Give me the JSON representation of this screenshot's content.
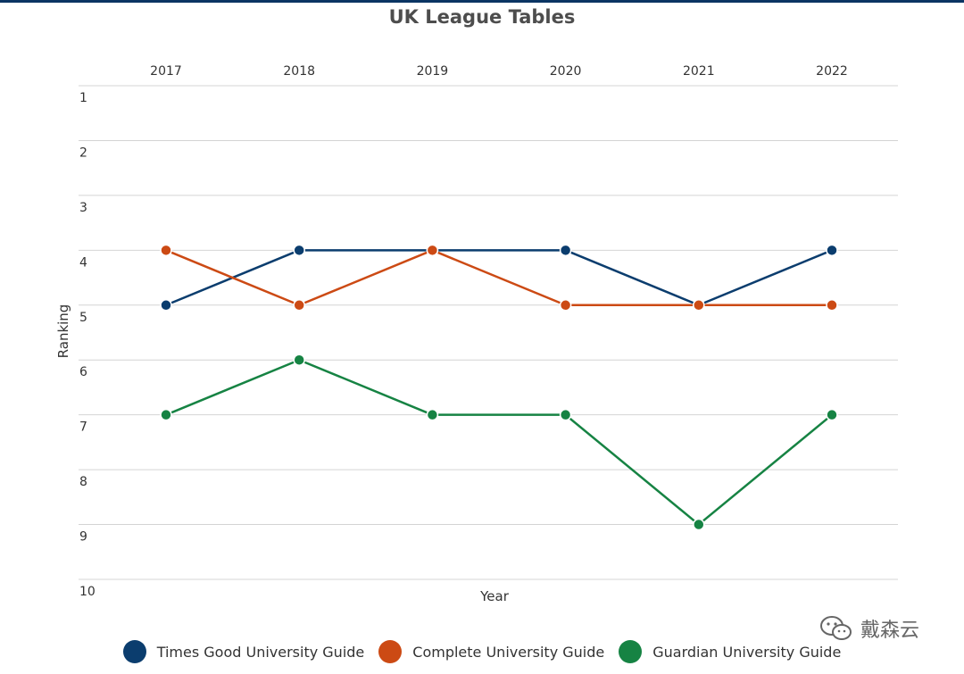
{
  "chart_data": {
    "type": "line",
    "title": "UK League Tables",
    "xlabel": "Year",
    "ylabel": "Ranking",
    "categories": [
      "2017",
      "2018",
      "2019",
      "2020",
      "2021",
      "2022"
    ],
    "y_ticks": [
      "1",
      "2",
      "3",
      "4",
      "5",
      "6",
      "7",
      "8",
      "9",
      "10"
    ],
    "ylim": [
      1,
      10
    ],
    "y_inverted": true,
    "x_axis_position": "top",
    "grid": true,
    "legend_position": "bottom",
    "series": [
      {
        "name": "Times Good University Guide",
        "color": "#0b3d6e",
        "values": [
          5,
          4,
          4,
          4,
          5,
          4
        ]
      },
      {
        "name": "Complete University Guide",
        "color": "#cc4a14",
        "values": [
          4,
          5,
          4,
          5,
          5,
          5
        ]
      },
      {
        "name": "Guardian University Guide",
        "color": "#168343",
        "values": [
          7,
          6,
          7,
          7,
          9,
          7
        ]
      }
    ]
  },
  "watermark": {
    "text": "戴森云",
    "icon": "wechat-icon"
  }
}
